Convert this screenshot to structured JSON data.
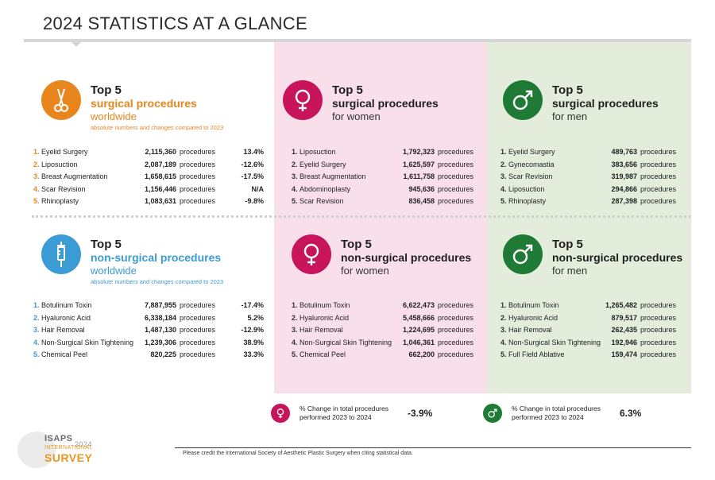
{
  "page": {
    "title": "2024 STATISTICS AT A GLANCE"
  },
  "colors": {
    "orange": "#e8861d",
    "blue": "#3b9bd4",
    "pink": "#c7145b",
    "green": "#1e7a34"
  },
  "panels": {
    "surg_world": {
      "icon": "scissors-icon",
      "top": "Top 5",
      "main": "surgical procedures",
      "sub": "worldwide",
      "note": "absolute numbers and changes compared to 2023",
      "items": [
        {
          "num": "1.",
          "name": "Eyelid Surgery",
          "value": "2,115,360",
          "unit": "procedures",
          "change": "13.4%"
        },
        {
          "num": "2.",
          "name": "Liposuction",
          "value": "2,087,189",
          "unit": "procedures",
          "change": "-12.6%"
        },
        {
          "num": "3.",
          "name": "Breast Augmentation",
          "value": "1,658,615",
          "unit": "procedures",
          "change": "-17.5%"
        },
        {
          "num": "4.",
          "name": "Scar Revision",
          "value": "1,156,446",
          "unit": "procedures",
          "change": "N/A"
        },
        {
          "num": "5.",
          "name": "Rhinoplasty",
          "value": "1,083,631",
          "unit": "procedures",
          "change": "-9.8%"
        }
      ]
    },
    "surg_women": {
      "icon": "female-icon",
      "top": "Top 5",
      "main": "surgical procedures",
      "sub": "for women",
      "items": [
        {
          "num": "1.",
          "name": "Liposuction",
          "value": "1,792,323",
          "unit": "procedures"
        },
        {
          "num": "2.",
          "name": "Eyelid Surgery",
          "value": "1,625,597",
          "unit": "procedures"
        },
        {
          "num": "3.",
          "name": "Breast Augmentation",
          "value": "1,611,758",
          "unit": "procedures"
        },
        {
          "num": "4.",
          "name": "Abdominoplasty",
          "value": "945,636",
          "unit": "procedures"
        },
        {
          "num": "5.",
          "name": "Scar Revision",
          "value": "836,458",
          "unit": "procedures"
        }
      ]
    },
    "surg_men": {
      "icon": "male-icon",
      "top": "Top 5",
      "main": "surgical procedures",
      "sub": "for men",
      "items": [
        {
          "num": "1.",
          "name": "Eyelid Surgery",
          "value": "489,763",
          "unit": "procedures"
        },
        {
          "num": "2.",
          "name": "Gynecomastia",
          "value": "383,656",
          "unit": "procedures"
        },
        {
          "num": "3.",
          "name": "Scar Revision",
          "value": "319,987",
          "unit": "procedures"
        },
        {
          "num": "4.",
          "name": "Liposuction",
          "value": "294,866",
          "unit": "procedures"
        },
        {
          "num": "5.",
          "name": "Rhinoplasty",
          "value": "287,398",
          "unit": "procedures"
        }
      ]
    },
    "nonsurg_world": {
      "icon": "syringe-icon",
      "top": "Top 5",
      "main": "non-surgical procedures",
      "sub": "worldwide",
      "note": "absolute numbers and changes compared to 2023",
      "items": [
        {
          "num": "1.",
          "name": "Botulinum Toxin",
          "value": "7,887,955",
          "unit": "procedures",
          "change": "-17.4%"
        },
        {
          "num": "2.",
          "name": "Hyaluronic Acid",
          "value": "6,338,184",
          "unit": "procedures",
          "change": "5.2%"
        },
        {
          "num": "3.",
          "name": "Hair Removal",
          "value": "1,487,130",
          "unit": "procedures",
          "change": "-12.9%"
        },
        {
          "num": "4.",
          "name": "Non-Surgical Skin Tightening",
          "value": "1,239,306",
          "unit": "procedures",
          "change": "38.9%"
        },
        {
          "num": "5.",
          "name": "Chemical Peel",
          "value": "820,225",
          "unit": "procedures",
          "change": "33.3%"
        }
      ]
    },
    "nonsurg_women": {
      "icon": "female-icon",
      "top": "Top 5",
      "main": "non-surgical procedures",
      "sub": "for women",
      "items": [
        {
          "num": "1.",
          "name": "Botulinum Toxin",
          "value": "6,622,473",
          "unit": "procedures"
        },
        {
          "num": "2.",
          "name": "Hyaluronic Acid",
          "value": "5,458,666",
          "unit": "procedures"
        },
        {
          "num": "3.",
          "name": "Hair Removal",
          "value": "1,224,695",
          "unit": "procedures"
        },
        {
          "num": "4.",
          "name": "Non-Surgical Skin Tightening",
          "value": "1,046,361",
          "unit": "procedures"
        },
        {
          "num": "5.",
          "name": "Chemical Peel",
          "value": "662,200",
          "unit": "procedures"
        }
      ]
    },
    "nonsurg_men": {
      "icon": "male-icon",
      "top": "Top 5",
      "main": "non-surgical procedures",
      "sub": "for men",
      "items": [
        {
          "num": "1.",
          "name": "Botulinum Toxin",
          "value": "1,265,482",
          "unit": "procedures"
        },
        {
          "num": "2.",
          "name": "Hyaluronic Acid",
          "value": "879,517",
          "unit": "procedures"
        },
        {
          "num": "3.",
          "name": "Hair Removal",
          "value": "262,435",
          "unit": "procedures"
        },
        {
          "num": "4.",
          "name": "Non-Surgical Skin Tightening",
          "value": "192,946",
          "unit": "procedures"
        },
        {
          "num": "5.",
          "name": "Full Field Ablative",
          "value": "159,474",
          "unit": "procedures"
        }
      ]
    }
  },
  "summary": {
    "women": {
      "icon": "female-icon",
      "text": "% Change in total procedures performed 2023 to 2024",
      "value": "-3.9%"
    },
    "men": {
      "icon": "male-icon",
      "text": "% Change in total procedures performed 2023 to 2024",
      "value": "6.3%"
    }
  },
  "footer": {
    "credit": "Please credit the International Society of Aesthetic Plastic Surgery when citing statistical data."
  },
  "logo": {
    "brand": "ISAPS",
    "year": "2024",
    "line1": "INTERNATIONAL",
    "line2": "SURVEY"
  }
}
